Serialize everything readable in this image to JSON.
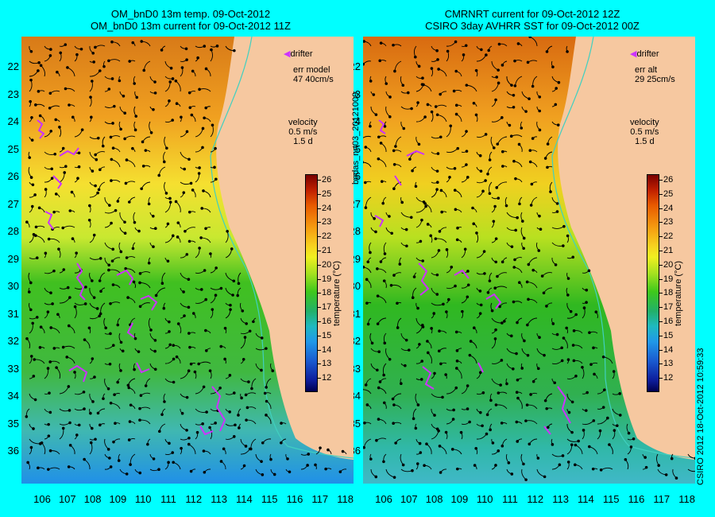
{
  "left_panel": {
    "title_line1": "OM_bnD0 13m temp. 09-Oct-2012",
    "title_line2": "OM_bnD0 13m current for 09-Oct-2012 11Z",
    "legend_drifter": "drifter",
    "err_label": "err model",
    "err_value": "47 40cm/s",
    "velocity_label": "velocity",
    "velocity_scale": "0.5 m/s",
    "velocity_days": "1.5 d"
  },
  "right_panel": {
    "title_line1": "CMRNRT current for 09-Oct-2012 12Z",
    "title_line2": "CSIRO 3day AVHRR SST for 09-Oct-2012 00Z",
    "legend_drifter": "drifter",
    "err_label": "err alt",
    "err_value": "29 25cm/s",
    "velocity_label": "velocity",
    "velocity_scale": "0.5 m/s",
    "velocity_days": "1.5 d"
  },
  "side_label": "bodas_nrt03_20121009",
  "copyright": "CSIRO 2012   18-Oct-2012 10:59:33",
  "colorbar": {
    "label": "temperature (°C)",
    "ticks": [
      "26",
      "25",
      "24",
      "23",
      "22",
      "21",
      "20",
      "19",
      "18",
      "17",
      "16",
      "15",
      "14",
      "13",
      "12"
    ]
  },
  "latitudes": [
    "22",
    "23",
    "24",
    "25",
    "26",
    "27",
    "28",
    "29",
    "30",
    "31",
    "32",
    "33",
    "34",
    "35",
    "36"
  ],
  "longitudes": [
    "106",
    "107",
    "108",
    "109",
    "110",
    "111",
    "112",
    "113",
    "114",
    "115",
    "116",
    "117",
    "118"
  ],
  "colors": {
    "background": "#00ffff",
    "land": "#f6c8a0",
    "drifter": "#cc33ff",
    "isobath": "#40d0c0"
  }
}
